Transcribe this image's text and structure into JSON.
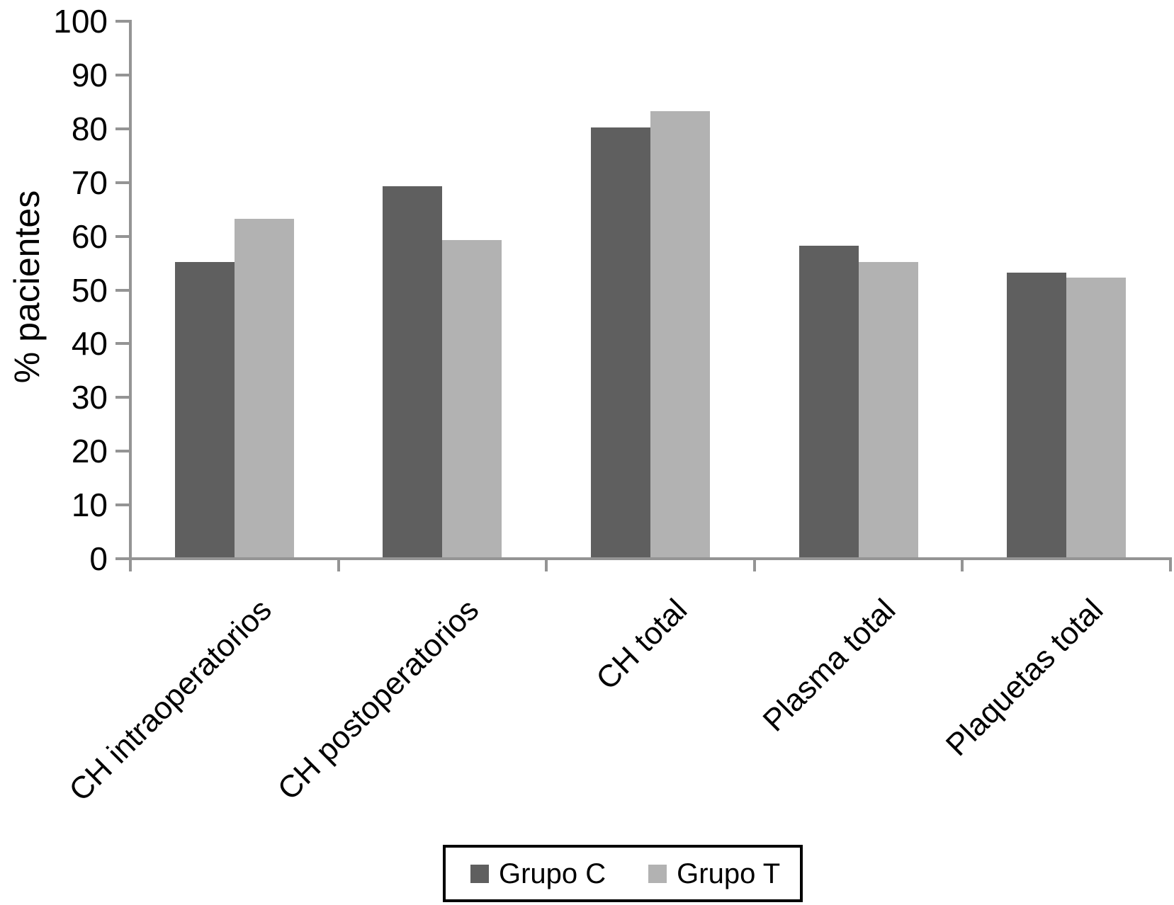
{
  "chart_data": {
    "type": "bar",
    "ylabel": "% pacientes",
    "categories": [
      "CH intraoperatorios",
      "CH postoperatorios",
      "CH total",
      "Plasma total",
      "Plaquetas total"
    ],
    "series": [
      {
        "name": "Grupo C",
        "color": "#5f5f5f",
        "values": [
          55,
          69,
          80,
          58,
          53
        ]
      },
      {
        "name": "Grupo T",
        "color": "#b2b2b2",
        "values": [
          63,
          59,
          83,
          55,
          52
        ]
      }
    ],
    "ylim": [
      0,
      100
    ],
    "yticks": [
      0,
      10,
      20,
      30,
      40,
      50,
      60,
      70,
      80,
      90,
      100
    ],
    "grid": false,
    "legend_position": "bottom",
    "axis_color": "#949494",
    "text_color": "#000000"
  }
}
